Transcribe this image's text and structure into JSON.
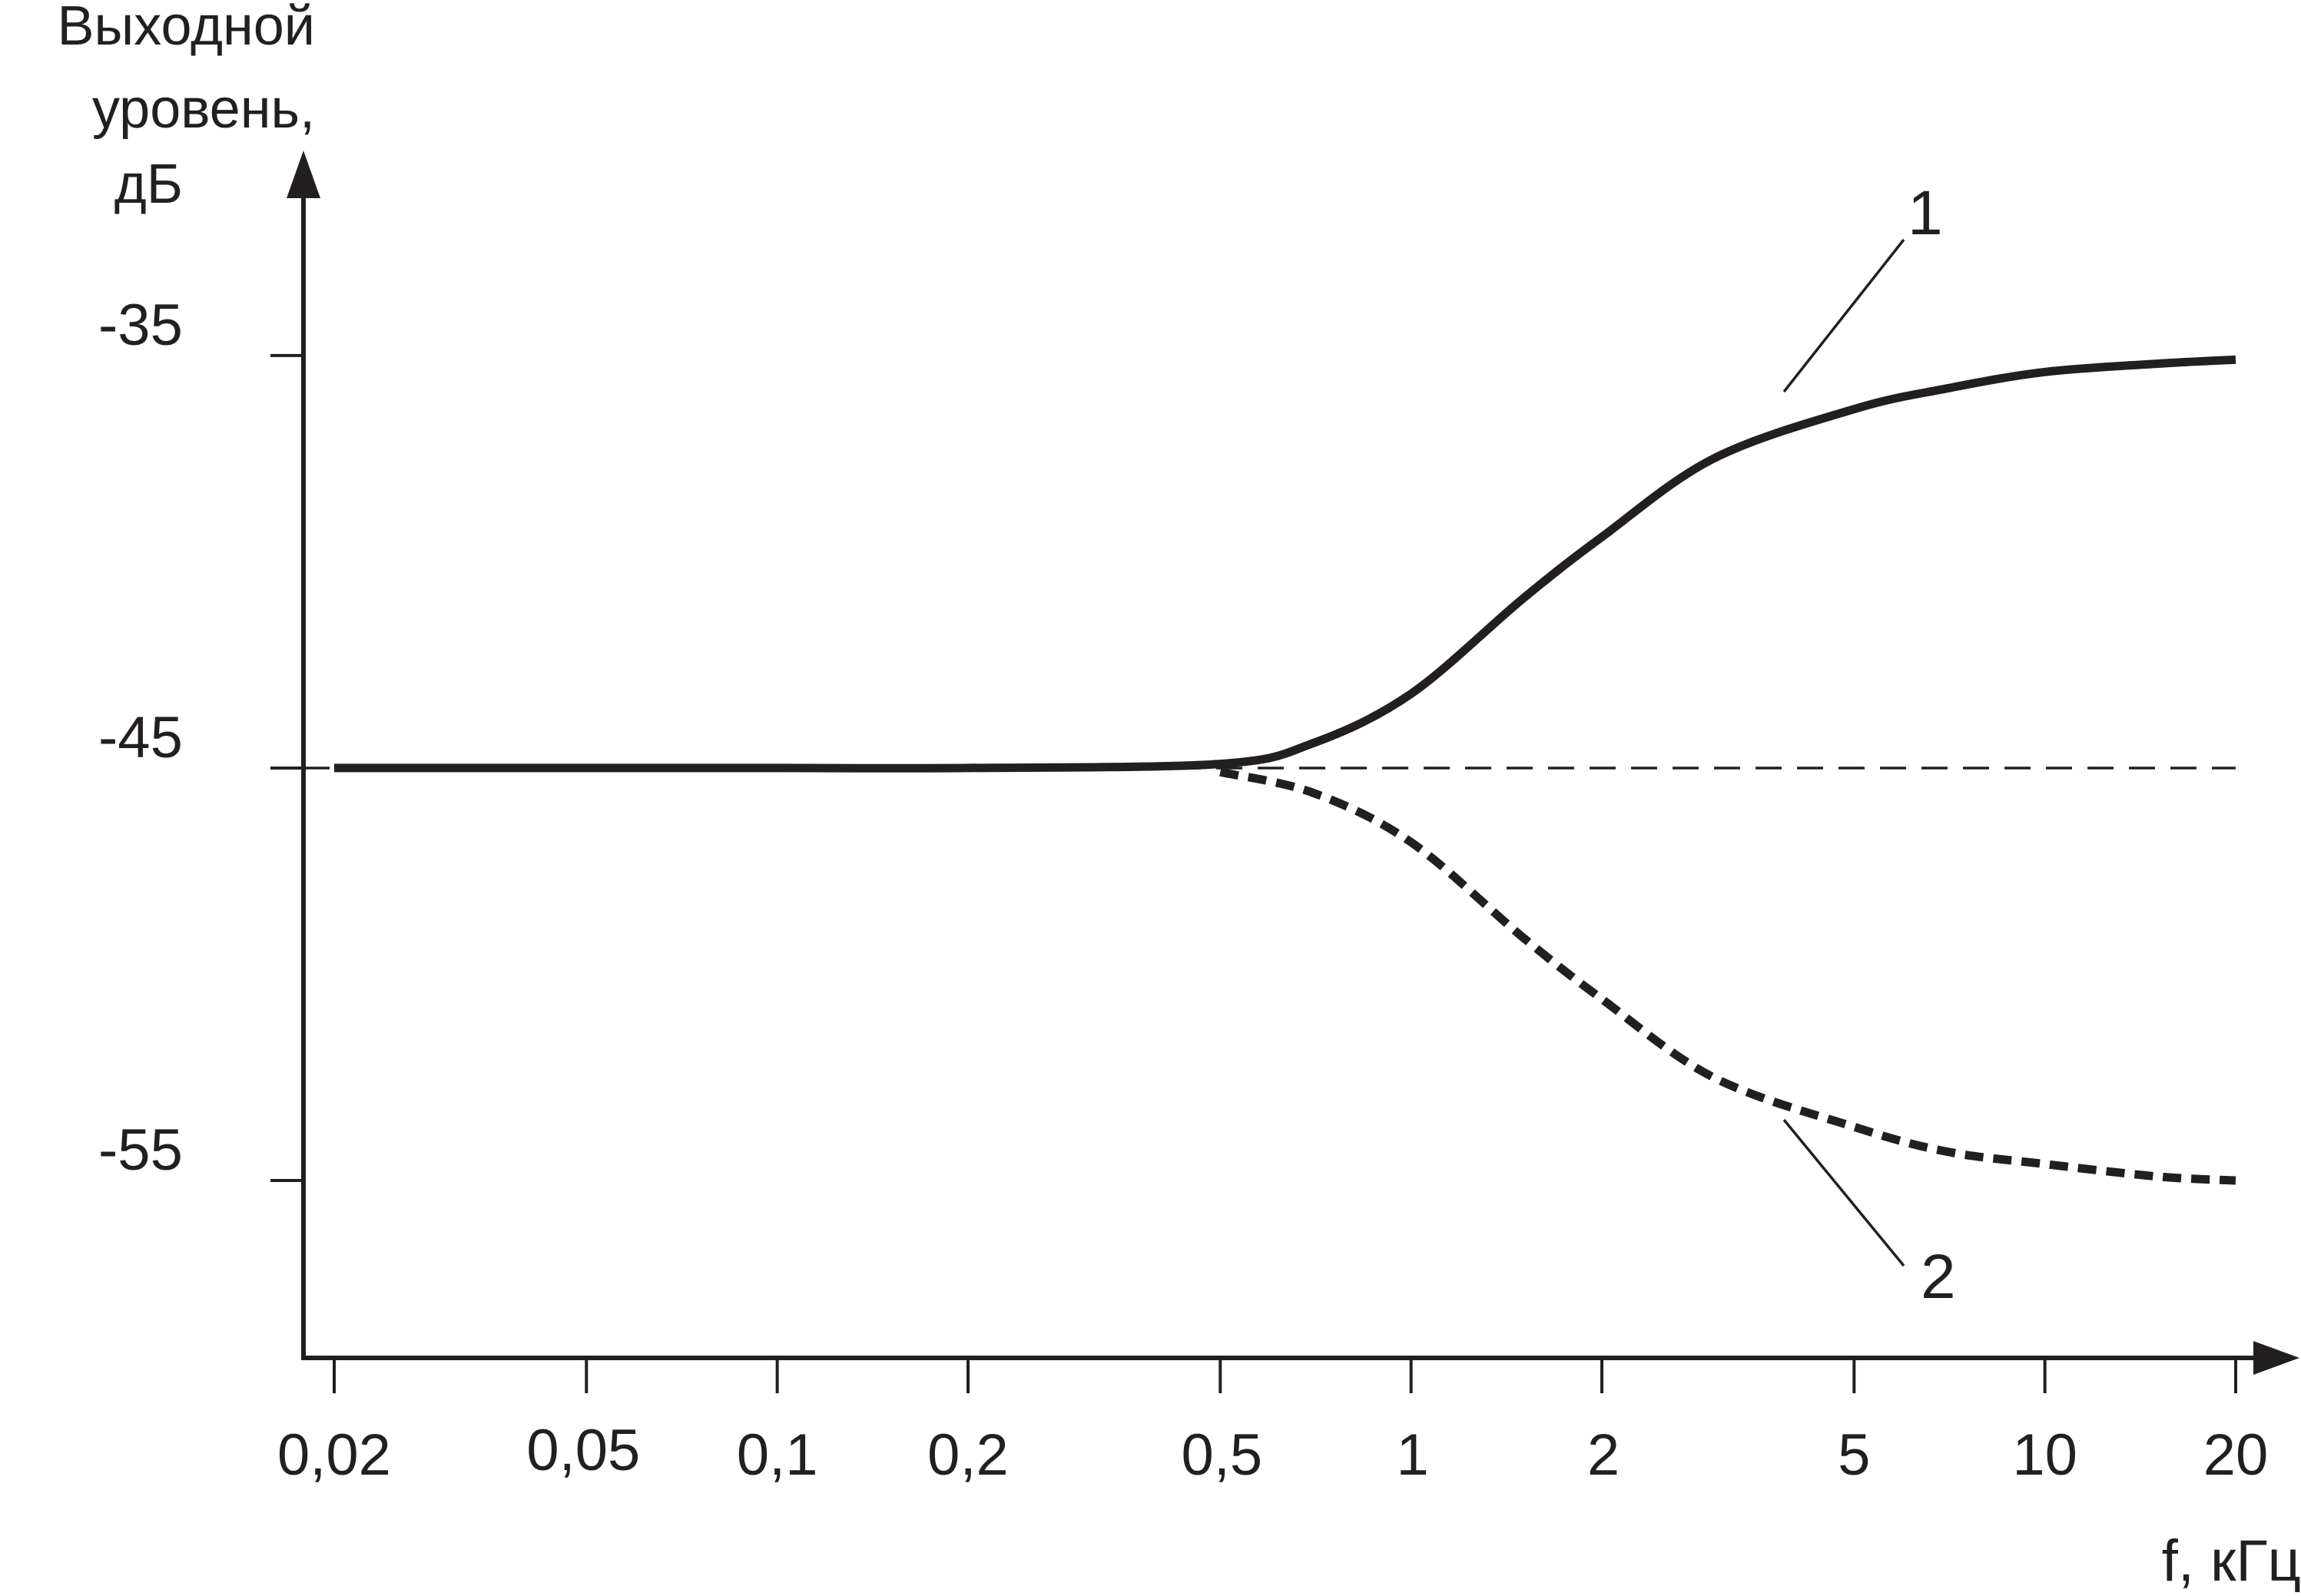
{
  "chart_data": {
    "type": "line",
    "ylabel_lines": [
      "Выходной",
      "уровень,",
      "дБ"
    ],
    "xlabel": "f, кГц",
    "x_scale": "log",
    "x_ticks": [
      0.02,
      0.05,
      0.1,
      0.2,
      0.5,
      1,
      2,
      5,
      10,
      20
    ],
    "x_tick_labels": [
      "0,02",
      "0,05",
      "0,1",
      "0,2",
      "0,5",
      "1",
      "2",
      "5",
      "10",
      "20"
    ],
    "y_ticks": [
      -35,
      -45,
      -55
    ],
    "y_tick_labels": [
      "-35",
      "-45",
      "-55"
    ],
    "ylim": [
      -59.3,
      -31
    ],
    "reference_line": {
      "y": -45,
      "style": "dashed"
    },
    "series": [
      {
        "name": "1",
        "style": "solid",
        "x": [
          0.02,
          0.05,
          0.1,
          0.2,
          0.5,
          0.7,
          1,
          1.5,
          2,
          3,
          5,
          7,
          10,
          15,
          20
        ],
        "values": [
          -45,
          -45,
          -45,
          -45,
          -44.9,
          -44.4,
          -43.2,
          -40.9,
          -39.4,
          -37.5,
          -36.3,
          -35.8,
          -35.4,
          -35.2,
          -35.1
        ]
      },
      {
        "name": "2",
        "style": "dashed",
        "x": [
          0.02,
          0.05,
          0.1,
          0.2,
          0.5,
          0.7,
          1,
          1.5,
          2,
          3,
          5,
          7,
          10,
          15,
          20
        ],
        "values": [
          -45,
          -45,
          -45,
          -45,
          -45.1,
          -45.6,
          -46.8,
          -49.1,
          -50.6,
          -52.5,
          -53.7,
          -54.3,
          -54.6,
          -54.9,
          -55
        ]
      }
    ]
  }
}
